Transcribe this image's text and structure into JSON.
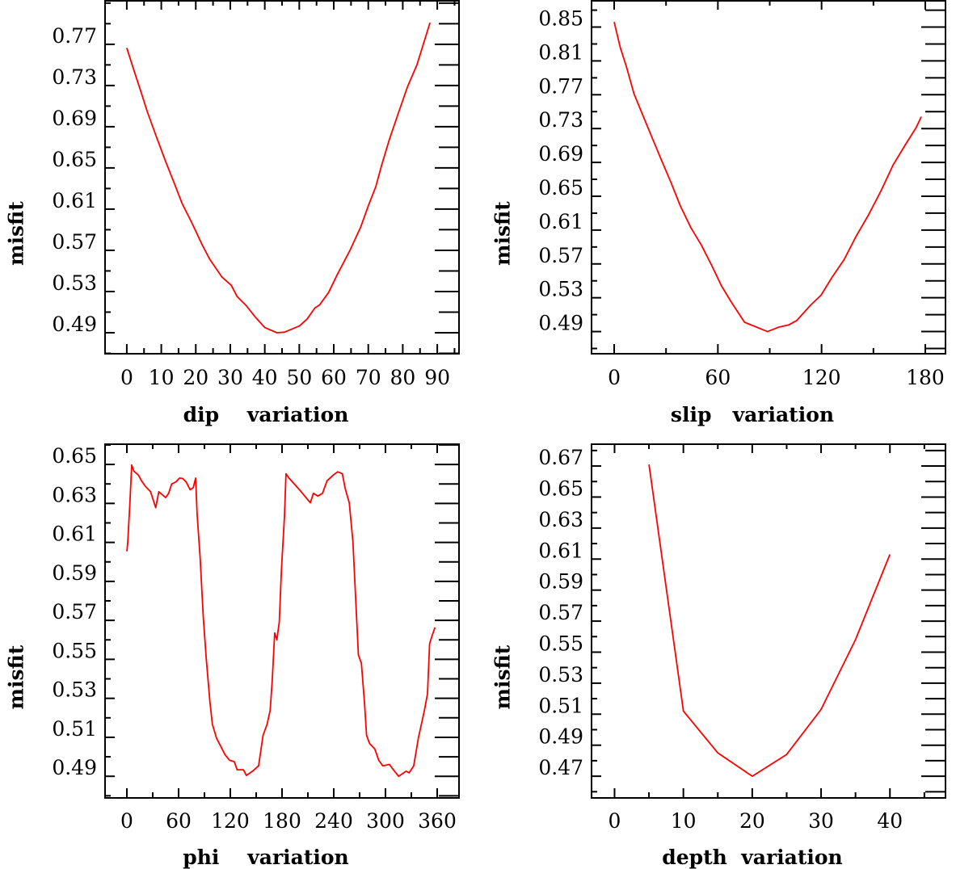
{
  "chart_data": [
    {
      "type": "line",
      "xlabel": "dip    variation",
      "ylabel": "misfit",
      "xlim": [
        -6.3,
        96.3
      ],
      "ylim": [
        0.4696,
        0.813
      ],
      "xticks": [
        0,
        10,
        20,
        30,
        40,
        50,
        60,
        70,
        80,
        90
      ],
      "xtick_labels": [
        "0",
        "10",
        "20",
        "30",
        "40",
        "50",
        "60",
        "70",
        "80",
        "90"
      ],
      "xminor": 5,
      "yticks": [
        0.49,
        0.53,
        0.57,
        0.61,
        0.65,
        0.69,
        0.73,
        0.77
      ],
      "ytick_labels": [
        "0.49",
        "0.53",
        "0.57",
        "0.61",
        "0.65",
        "0.69",
        "0.73",
        "0.77"
      ],
      "yminor": 0.02,
      "grid": false,
      "color": "#ff0000",
      "x": [
        0,
        2.03,
        4.2,
        6,
        8.6,
        11.3,
        13.9,
        16.1,
        18.8,
        21.9,
        24.1,
        27.6,
        30.3,
        32,
        34.7,
        37.3,
        40,
        43.5,
        45.7,
        50.1,
        52.3,
        54.5,
        55.9,
        58.5,
        61.1,
        64.7,
        67.8,
        70,
        72.2,
        73.9,
        76.1,
        78.8,
        81.4,
        84.1,
        87.9
      ],
      "y": [
        0.7665,
        0.745,
        0.723,
        0.704,
        0.68,
        0.656,
        0.634,
        0.615,
        0.597,
        0.575,
        0.561,
        0.544,
        0.536,
        0.525,
        0.516,
        0.505,
        0.495,
        0.49,
        0.4905,
        0.4967,
        0.5035,
        0.514,
        0.517,
        0.529,
        0.547,
        0.57,
        0.5925,
        0.613,
        0.632,
        0.653,
        0.6775,
        0.704,
        0.729,
        0.75,
        0.791
      ]
    },
    {
      "type": "line",
      "xlabel": "slip   variation",
      "ylabel": "misfit",
      "xlim": [
        -13.1,
        191.7
      ],
      "ylim": [
        0.4638,
        0.882
      ],
      "xticks": [
        0,
        60,
        120,
        180
      ],
      "xtick_labels": [
        "0",
        "60",
        "120",
        "180"
      ],
      "xminor": 30,
      "yticks": [
        0.49,
        0.53,
        0.57,
        0.61,
        0.65,
        0.69,
        0.73,
        0.77,
        0.81,
        0.85
      ],
      "ytick_labels": [
        "0.49",
        "0.53",
        "0.57",
        "0.61",
        "0.65",
        "0.69",
        "0.73",
        "0.77",
        "0.81",
        "0.85"
      ],
      "yminor": 0.02,
      "grid": false,
      "color": "#ff0000",
      "x": [
        0,
        3.5,
        7.1,
        11.5,
        16.9,
        22.2,
        27.5,
        32.9,
        38.2,
        44.3,
        50.5,
        56.7,
        62.1,
        67.4,
        75.4,
        88.7,
        94.9,
        101.1,
        105.6,
        113.5,
        119.7,
        126,
        133,
        140.1,
        147.2,
        154.3,
        161.4,
        168.5,
        174.7,
        177.7
      ],
      "y": [
        0.856,
        0.826,
        0.803,
        0.771,
        0.744,
        0.718,
        0.692,
        0.666,
        0.639,
        0.613,
        0.592,
        0.567,
        0.544,
        0.526,
        0.501,
        0.49,
        0.495,
        0.498,
        0.503,
        0.521,
        0.533,
        0.554,
        0.575,
        0.603,
        0.628,
        0.656,
        0.687,
        0.711,
        0.731,
        0.744
      ]
    },
    {
      "type": "line",
      "xlabel": "phi    variation",
      "ylabel": "misfit",
      "xlim": [
        -25.3,
        385.3
      ],
      "ylim": [
        0.4789,
        0.6608
      ],
      "xticks": [
        0,
        60,
        120,
        180,
        240,
        300,
        360
      ],
      "xtick_labels": [
        "0",
        "60",
        "120",
        "180",
        "240",
        "300",
        "360"
      ],
      "xminor": 30,
      "yticks": [
        0.49,
        0.51,
        0.53,
        0.55,
        0.57,
        0.59,
        0.61,
        0.63,
        0.65
      ],
      "ytick_labels": [
        "0.49",
        "0.51",
        "0.53",
        "0.55",
        "0.57",
        "0.59",
        "0.61",
        "0.63",
        "0.65"
      ],
      "yminor": 0.01,
      "grid": false,
      "color": "#ff0000",
      "x": [
        0,
        1.06,
        3.5,
        5.6,
        8.1,
        13.4,
        17,
        21.5,
        27.5,
        33.5,
        37,
        45,
        48.5,
        52,
        56.8,
        61,
        64.6,
        68.8,
        73.4,
        77,
        79.8,
        81.5,
        85,
        88.6,
        92,
        96.4,
        99.2,
        104,
        110.5,
        114,
        119.3,
        124.6,
        128,
        135.2,
        138.7,
        145.8,
        152.8,
        158,
        162.7,
        166.2,
        168.7,
        171.5,
        174,
        176.8,
        179.3,
        182.8,
        184.6,
        188.1,
        195.2,
        202.2,
        212.8,
        216.4,
        221.6,
        227,
        232.2,
        239.3,
        244.6,
        249.9,
        253.4,
        258,
        262.2,
        265,
        268.6,
        272.1,
        275.6,
        278.1,
        281.6,
        287.6,
        292.2,
        296.8,
        304.6,
        308.1,
        315.2,
        324,
        327.5,
        332.8,
        338.1,
        345.2,
        348.7,
        351.2,
        354,
        357.5
      ],
      "y": [
        0.6054,
        0.61,
        0.63,
        0.6497,
        0.6466,
        0.6445,
        0.6416,
        0.6388,
        0.636,
        0.6278,
        0.636,
        0.633,
        0.6352,
        0.64,
        0.641,
        0.643,
        0.6428,
        0.641,
        0.637,
        0.638,
        0.643,
        0.6246,
        0.6019,
        0.572,
        0.551,
        0.528,
        0.5167,
        0.5096,
        0.504,
        0.501,
        0.4982,
        0.4975,
        0.4933,
        0.4933,
        0.4904,
        0.4926,
        0.4954,
        0.511,
        0.5167,
        0.5238,
        0.5394,
        0.5635,
        0.56,
        0.5692,
        0.5962,
        0.6232,
        0.6452,
        0.643,
        0.6395,
        0.636,
        0.6303,
        0.6352,
        0.6338,
        0.6352,
        0.6416,
        0.6445,
        0.6462,
        0.6452,
        0.6374,
        0.6303,
        0.6104,
        0.5848,
        0.5522,
        0.548,
        0.528,
        0.511,
        0.5068,
        0.504,
        0.4982,
        0.4954,
        0.4961,
        0.494,
        0.49,
        0.4926,
        0.4918,
        0.4954,
        0.5096,
        0.5238,
        0.5323,
        0.558,
        0.562,
        0.5664
      ]
    },
    {
      "type": "line",
      "xlabel": "depth  variation",
      "ylabel": "misfit",
      "xlim": [
        -3.34,
        48.07
      ],
      "ylim": [
        0.456,
        0.6846
      ],
      "xticks": [
        0,
        10,
        20,
        30,
        40
      ],
      "xtick_labels": [
        "0",
        "10",
        "20",
        "30",
        "40"
      ],
      "xminor": 5,
      "yticks": [
        0.47,
        0.49,
        0.51,
        0.53,
        0.55,
        0.57,
        0.59,
        0.61,
        0.63,
        0.65,
        0.67
      ],
      "ytick_labels": [
        "0.47",
        "0.49",
        "0.51",
        "0.53",
        "0.55",
        "0.57",
        "0.59",
        "0.61",
        "0.63",
        "0.65",
        "0.67"
      ],
      "yminor": 0.01,
      "grid": false,
      "color": "#ff0000",
      "x": [
        5,
        10,
        15,
        20,
        25,
        30,
        35,
        40
      ],
      "y": [
        0.671,
        0.512,
        0.485,
        0.47,
        0.484,
        0.513,
        0.558,
        0.613
      ]
    }
  ]
}
